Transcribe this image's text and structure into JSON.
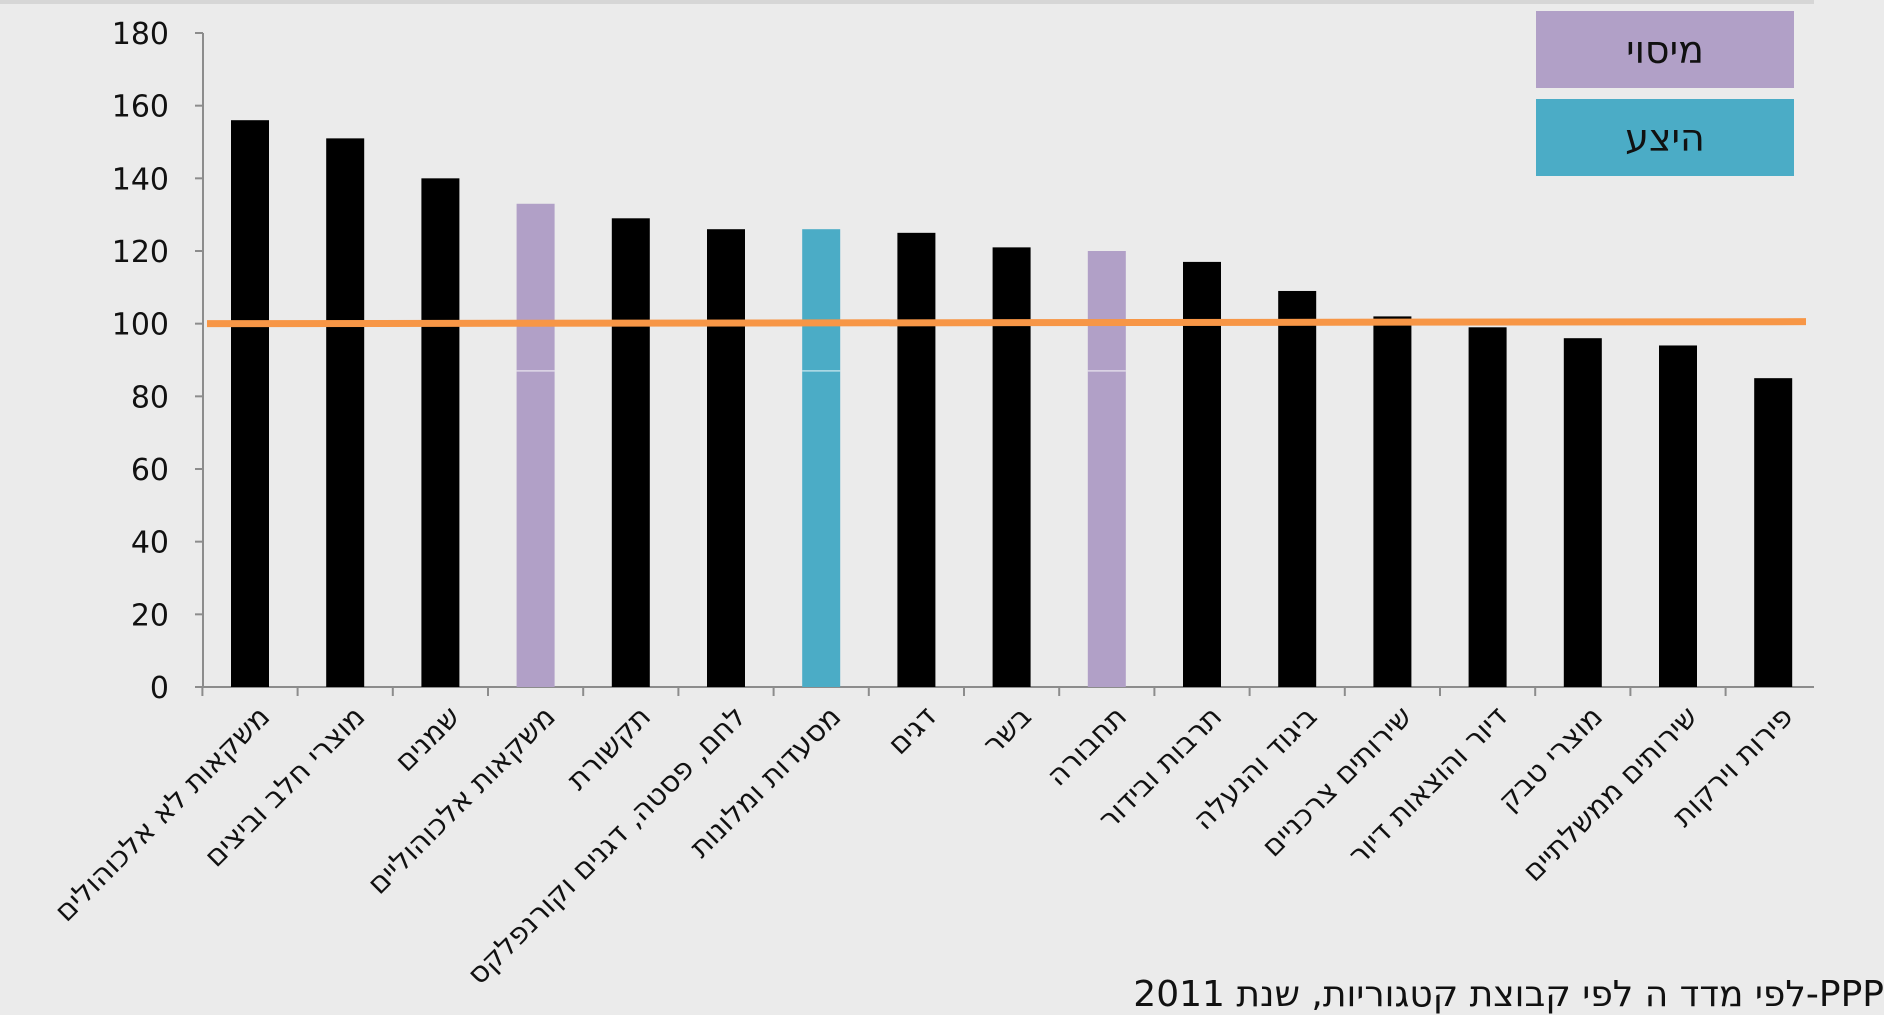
{
  "chart_data": {
    "type": "bar",
    "categories": [
      "משקאות לא אלכוהולים",
      "מוצרי חלב וביצים",
      "שמנים",
      "משקאות אלכוהוליים",
      "תקשורת",
      "לחם, פסטה, דגנים וקורנפלקס",
      "מסעדות ומלונות",
      "דגים",
      "בשר",
      "תחבורה",
      "תרבות ובידור",
      "ביגוד והנעלה",
      "שירותים צרכניים",
      "דיור והוצאות דיור",
      "מוצרי טבק",
      "שירותים ממשלתיים",
      "פירות וירקות"
    ],
    "values": [
      156,
      151,
      140,
      133,
      129,
      126,
      126,
      125,
      121,
      120,
      117,
      109,
      102,
      99,
      96,
      94,
      85
    ],
    "bar_groups": [
      "none",
      "none",
      "none",
      "taxation",
      "none",
      "none",
      "supply",
      "none",
      "none",
      "taxation",
      "none",
      "none",
      "none",
      "none",
      "none",
      "none",
      "none"
    ],
    "y_ticks": [
      0,
      20,
      40,
      60,
      80,
      100,
      120,
      140,
      160,
      180
    ],
    "ylim": [
      0,
      180
    ],
    "reference_line": 100,
    "grid": false,
    "legend_position": "top-right",
    "legend": [
      {
        "group": "taxation",
        "label": "מיסוי"
      },
      {
        "group": "supply",
        "label": "היצע"
      }
    ],
    "caption": "PPP-לפי מדד ה לפי קבוצת קטגוריות, שנת 2011",
    "colors": {
      "none": "#000000",
      "taxation": "#b1a0c7",
      "supply": "#4bacc6",
      "reference_line": "#f79646",
      "axis": "#8c8c8c"
    }
  }
}
